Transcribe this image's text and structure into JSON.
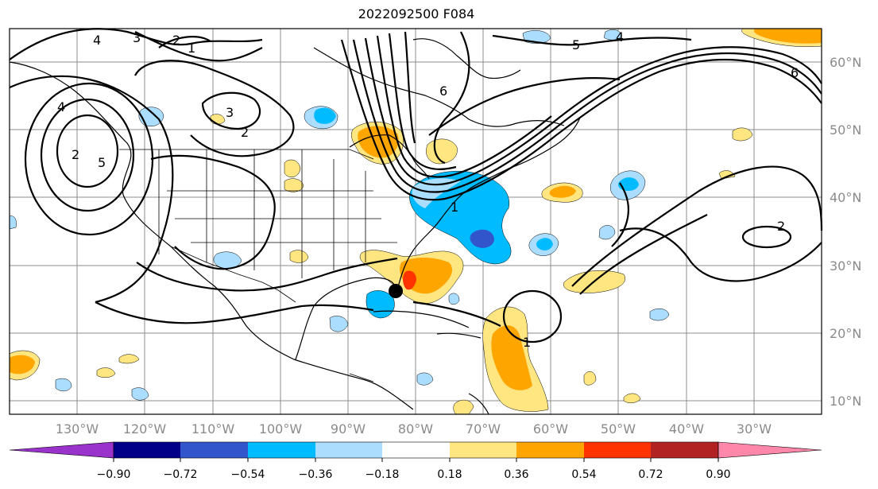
{
  "title": "2022092500 F084",
  "longitude_labels": [
    "130°W",
    "120°W",
    "110°W",
    "100°W",
    "90°W",
    "80°W",
    "70°W",
    "60°W",
    "50°W",
    "40°W",
    "30°W"
  ],
  "latitude_labels": [
    "60°N",
    "50°N",
    "40°N",
    "30°N",
    "20°N",
    "10°N"
  ],
  "contour_labels": [
    "4",
    "3",
    "2",
    "1",
    "3",
    "2",
    "2",
    "4",
    "5",
    "5",
    "6",
    "6",
    "2",
    "1",
    "1",
    "4"
  ],
  "marker": {
    "name": "storm-position",
    "longitude": -82.5,
    "latitude": 26.5
  },
  "colorbar": {
    "tick_labels": [
      "−0.90",
      "−0.72",
      "−0.54",
      "−0.36",
      "−0.18",
      "0.18",
      "0.36",
      "0.54",
      "0.72",
      "0.90"
    ],
    "colors": [
      "#9933cc",
      "#000088",
      "#3355cc",
      "#00bbff",
      "#aaddff",
      "#ffffff",
      "#ffe680",
      "#ffa500",
      "#ff3300",
      "#b22222",
      "#ff88aa"
    ]
  }
}
